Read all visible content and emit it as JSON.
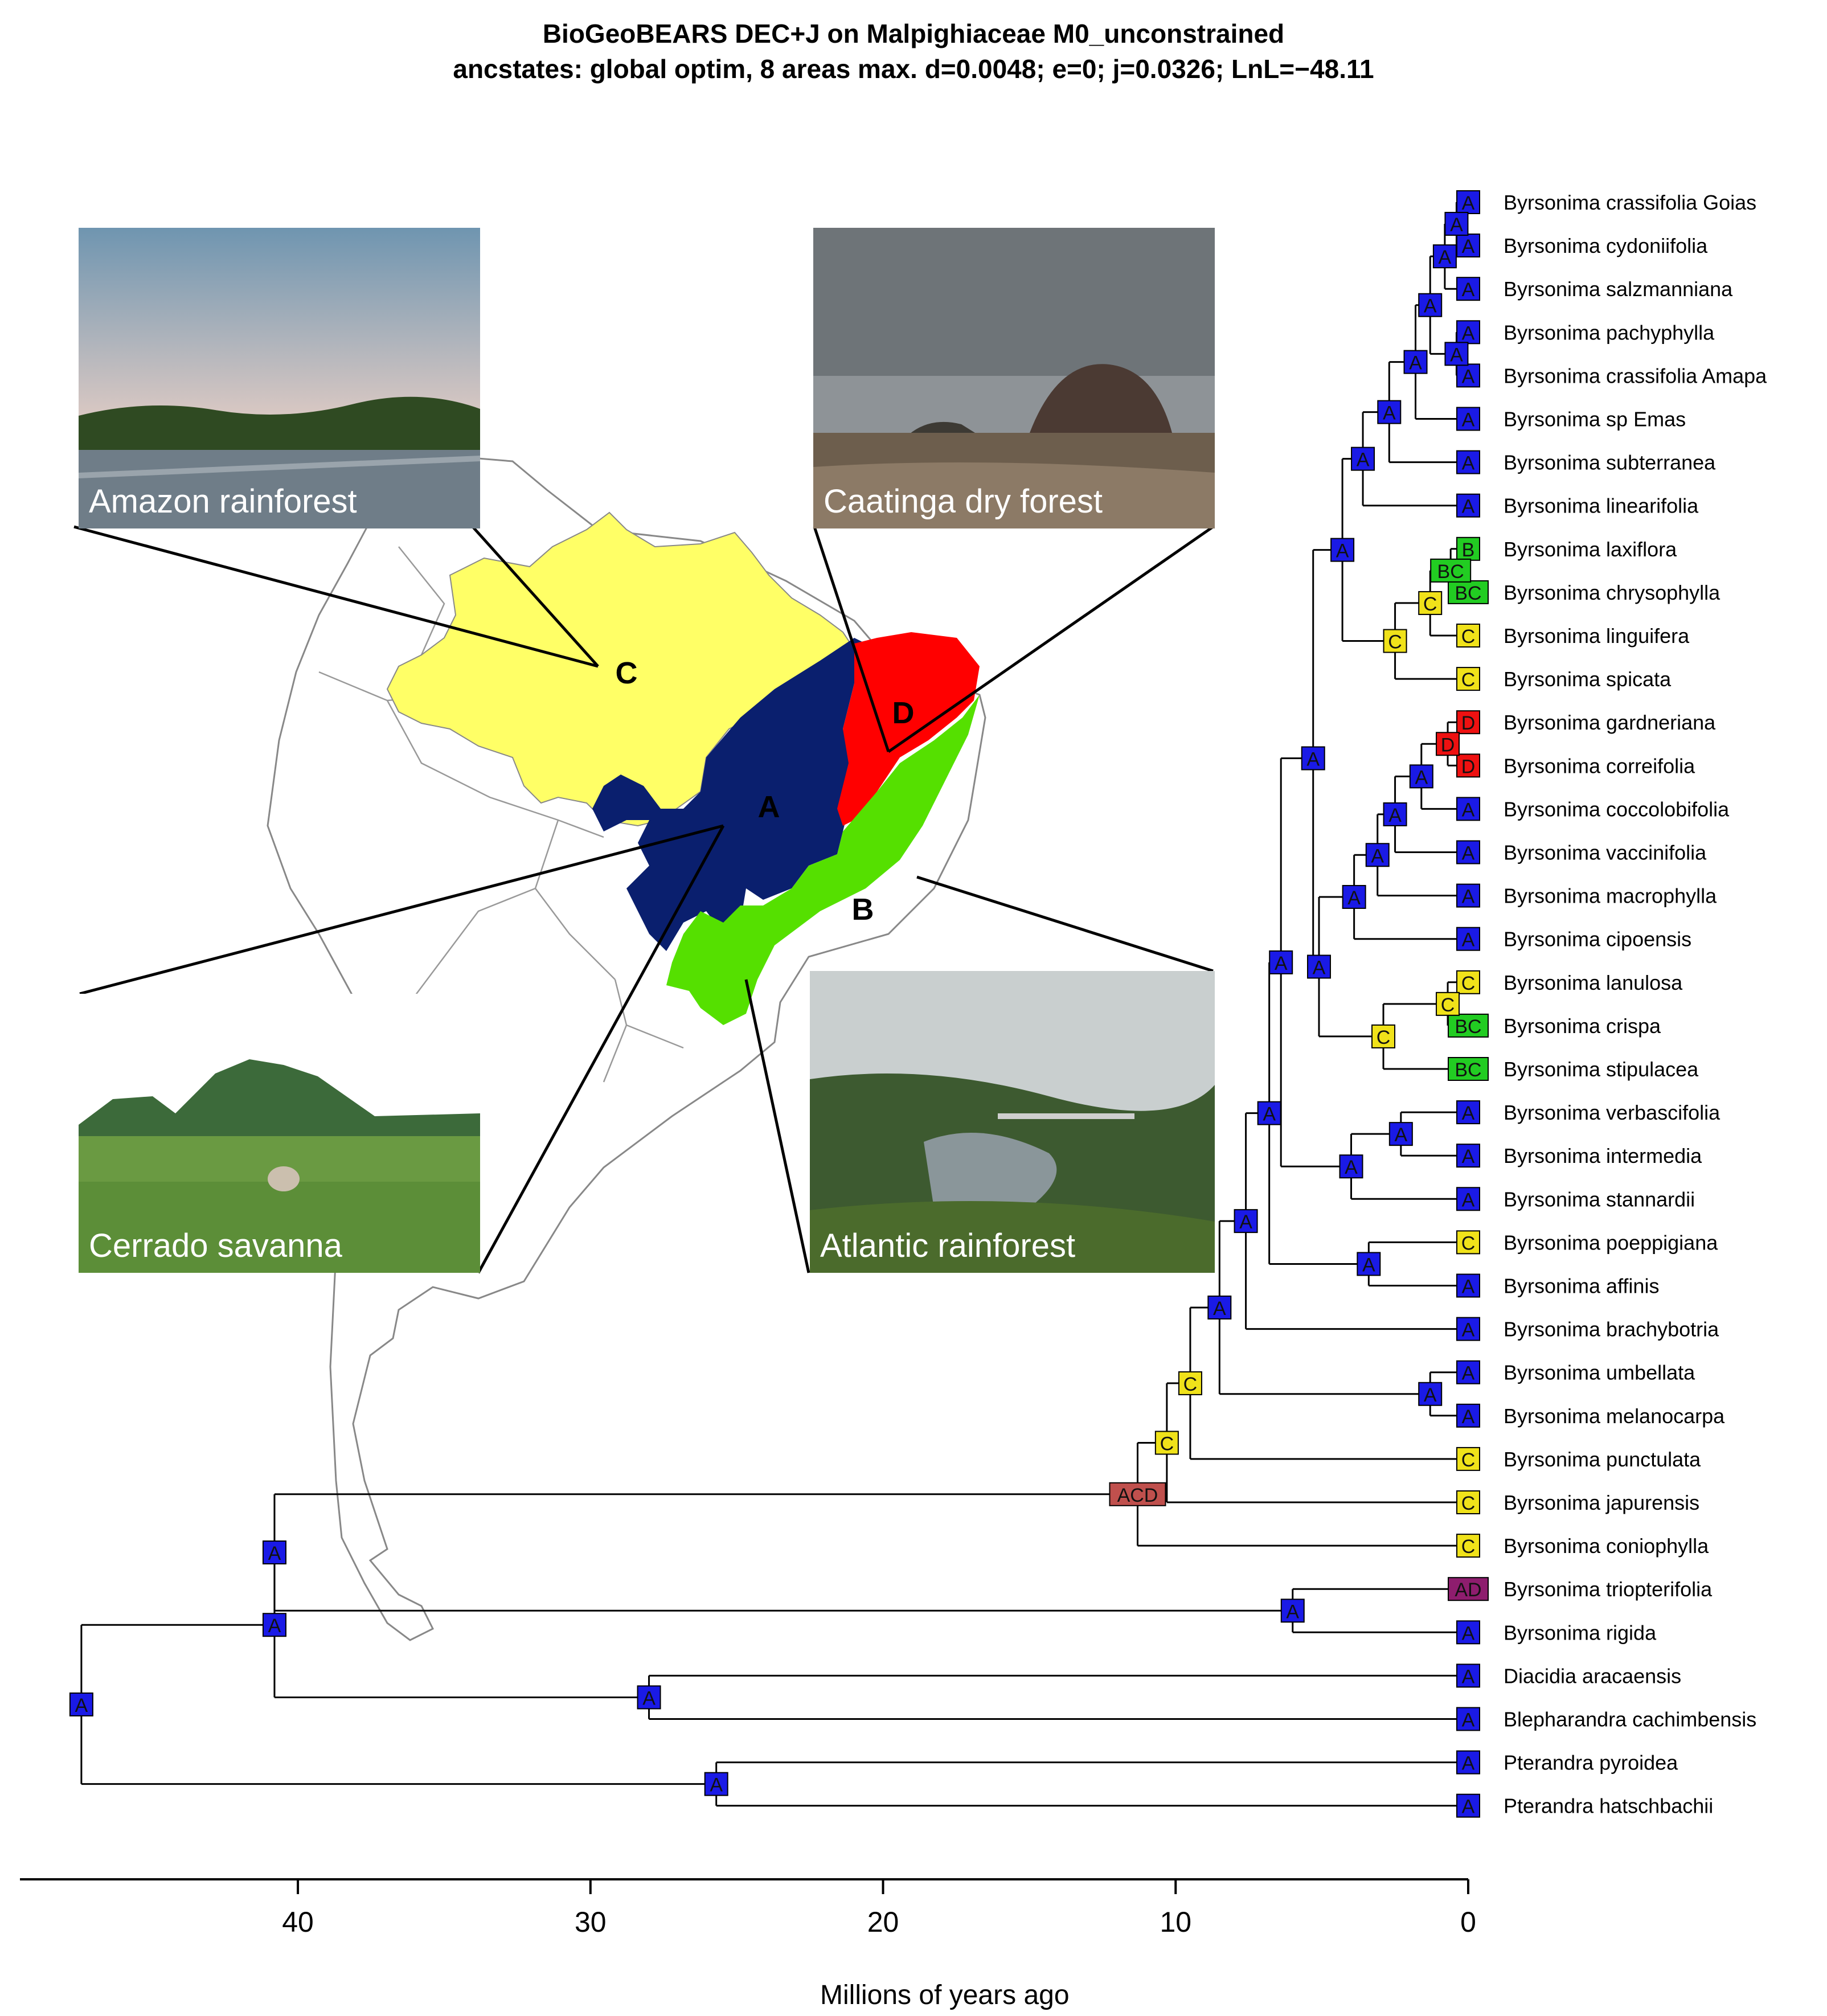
{
  "title": {
    "line1": "BioGeoBEARS DEC+J on Malpighiaceae M0_unconstrained",
    "line2": "ancstates: global optim, 8 areas max. d=0.0048; e=0; j=0.0326; LnL=−48.11"
  },
  "colors": {
    "A": "#1a1ae6",
    "B": "#22cc22",
    "C": "#f0e21a",
    "D": "#ee1111",
    "BC": "#22cc22",
    "AD": "#8e1d6e",
    "ACD": "#c0504d",
    "map_A": "#0a1f6e",
    "map_B": "#55e000",
    "map_C": "#ffff66",
    "map_D": "#ff0000"
  },
  "map": {
    "regions": [
      {
        "code": "A",
        "name": "Cerrado savanna"
      },
      {
        "code": "B",
        "name": "Atlantic rainforest"
      },
      {
        "code": "C",
        "name": "Amazon rainforest"
      },
      {
        "code": "D",
        "name": "Caatinga dry forest"
      }
    ]
  },
  "photos": {
    "amazon": "Amazon rainforest",
    "caatinga": "Caatinga dry forest",
    "cerrado": "Cerrado savanna",
    "atlantic": "Atlantic rainforest"
  },
  "taxa": [
    {
      "genus": "Byrsonima",
      "epithet": "crassifolia  Goias",
      "state": "A"
    },
    {
      "genus": "Byrsonima",
      "epithet": "cydoniifolia",
      "state": "A"
    },
    {
      "genus": "Byrsonima",
      "epithet": "salzmanniana",
      "state": "A"
    },
    {
      "genus": "Byrsonima",
      "epithet": "pachyphylla",
      "state": "A"
    },
    {
      "genus": "Byrsonima",
      "epithet": "crassifolia  Amapa",
      "state": "A"
    },
    {
      "genus": "Byrsonima",
      "epithet": "sp  Emas",
      "state": "A"
    },
    {
      "genus": "Byrsonima",
      "epithet": "subterranea",
      "state": "A"
    },
    {
      "genus": "Byrsonima",
      "epithet": "linearifolia",
      "state": "A"
    },
    {
      "genus": "Byrsonima",
      "epithet": "laxiflora",
      "state": "B"
    },
    {
      "genus": "Byrsonima",
      "epithet": "chrysophylla",
      "state": "BC"
    },
    {
      "genus": "Byrsonima",
      "epithet": "linguifera",
      "state": "C"
    },
    {
      "genus": "Byrsonima",
      "epithet": "spicata",
      "state": "C"
    },
    {
      "genus": "Byrsonima",
      "epithet": "gardneriana",
      "state": "D"
    },
    {
      "genus": "Byrsonima",
      "epithet": "correifolia",
      "state": "D"
    },
    {
      "genus": "Byrsonima",
      "epithet": "coccolobifolia",
      "state": "A"
    },
    {
      "genus": "Byrsonima",
      "epithet": "vaccinifolia",
      "state": "A"
    },
    {
      "genus": "Byrsonima",
      "epithet": "macrophylla",
      "state": "A"
    },
    {
      "genus": "Byrsonima",
      "epithet": "cipoensis",
      "state": "A"
    },
    {
      "genus": "Byrsonima",
      "epithet": "lanulosa",
      "state": "C"
    },
    {
      "genus": "Byrsonima",
      "epithet": "crispa",
      "state": "BC"
    },
    {
      "genus": "Byrsonima",
      "epithet": "stipulacea",
      "state": "BC"
    },
    {
      "genus": "Byrsonima",
      "epithet": "verbascifolia",
      "state": "A"
    },
    {
      "genus": "Byrsonima",
      "epithet": "intermedia",
      "state": "A"
    },
    {
      "genus": "Byrsonima",
      "epithet": "stannardii",
      "state": "A"
    },
    {
      "genus": "Byrsonima",
      "epithet": "poeppigiana",
      "state": "C"
    },
    {
      "genus": "Byrsonima",
      "epithet": "affinis",
      "state": "A"
    },
    {
      "genus": "Byrsonima",
      "epithet": "brachybotria",
      "state": "A"
    },
    {
      "genus": "Byrsonima",
      "epithet": "umbellata",
      "state": "A"
    },
    {
      "genus": "Byrsonima",
      "epithet": "melanocarpa",
      "state": "A"
    },
    {
      "genus": "Byrsonima",
      "epithet": "punctulata",
      "state": "C"
    },
    {
      "genus": "Byrsonima",
      "epithet": "japurensis",
      "state": "C"
    },
    {
      "genus": "Byrsonima",
      "epithet": "coniophylla",
      "state": "C"
    },
    {
      "genus": "Byrsonima",
      "epithet": "triopterifolia",
      "state": "AD"
    },
    {
      "genus": "Byrsonima",
      "epithet": "rigida",
      "state": "A"
    },
    {
      "genus": "Diacidia",
      "epithet": "aracaensis",
      "state": "A"
    },
    {
      "genus": "Blepharandra",
      "epithet": "cachimbensis",
      "state": "A"
    },
    {
      "genus": "Pterandra",
      "epithet": "pyroidea",
      "state": "A"
    },
    {
      "genus": "Pterandra",
      "epithet": "hatschbachii",
      "state": "A"
    }
  ],
  "nodes": [
    {
      "id": "n1",
      "age": 0.4,
      "children": [
        0,
        1
      ],
      "state": "A"
    },
    {
      "id": "n2",
      "age": 0.8,
      "children": [
        "n1",
        2
      ],
      "state": "A"
    },
    {
      "id": "n3",
      "age": 0.4,
      "children": [
        3,
        4
      ],
      "state": "A"
    },
    {
      "id": "n4",
      "age": 1.3,
      "children": [
        "n2",
        "n3"
      ],
      "state": "A"
    },
    {
      "id": "n5",
      "age": 1.8,
      "children": [
        "n4",
        5
      ],
      "state": "A"
    },
    {
      "id": "n6",
      "age": 2.7,
      "children": [
        "n5",
        6
      ],
      "state": "A"
    },
    {
      "id": "n7",
      "age": 3.6,
      "children": [
        "n6",
        7
      ],
      "state": "A"
    },
    {
      "id": "n8",
      "age": 0.6,
      "children": [
        8,
        9
      ],
      "state": "BC"
    },
    {
      "id": "n9",
      "age": 1.3,
      "children": [
        "n8",
        10
      ],
      "state": "C"
    },
    {
      "id": "n10",
      "age": 2.5,
      "children": [
        "n9",
        11
      ],
      "state": "C"
    },
    {
      "id": "n11",
      "age": 4.3,
      "children": [
        "n7",
        "n10"
      ],
      "state": "A"
    },
    {
      "id": "n12",
      "age": 0.7,
      "children": [
        12,
        13
      ],
      "state": "D"
    },
    {
      "id": "n13",
      "age": 1.6,
      "children": [
        "n12",
        14
      ],
      "state": "A"
    },
    {
      "id": "n14",
      "age": 2.5,
      "children": [
        "n13",
        15
      ],
      "state": "A"
    },
    {
      "id": "n15",
      "age": 3.1,
      "children": [
        "n14",
        16
      ],
      "state": "A"
    },
    {
      "id": "n16",
      "age": 3.9,
      "children": [
        "n15",
        17
      ],
      "state": "A"
    },
    {
      "id": "n17",
      "age": 0.7,
      "children": [
        18,
        19
      ],
      "state": "C"
    },
    {
      "id": "n18",
      "age": 2.9,
      "children": [
        "n17",
        20
      ],
      "state": "C"
    },
    {
      "id": "n19",
      "age": 5.1,
      "children": [
        "n16",
        "n18"
      ],
      "state": "A"
    },
    {
      "id": "n20",
      "age": 5.3,
      "children": [
        "n11",
        "n19"
      ],
      "state": "A"
    },
    {
      "id": "n21",
      "age": 2.3,
      "children": [
        21,
        22
      ],
      "state": "A"
    },
    {
      "id": "n22",
      "age": 4.0,
      "children": [
        "n21",
        23
      ],
      "state": "A"
    },
    {
      "id": "n23",
      "age": 6.4,
      "children": [
        "n20",
        "n22"
      ],
      "state": "A"
    },
    {
      "id": "n24",
      "age": 3.4,
      "children": [
        24,
        25
      ],
      "state": "A"
    },
    {
      "id": "n25",
      "age": 6.8,
      "children": [
        "n23",
        "n24"
      ],
      "state": "A"
    },
    {
      "id": "n26",
      "age": 7.6,
      "children": [
        "n25",
        26
      ],
      "state": "A"
    },
    {
      "id": "n27",
      "age": 1.3,
      "children": [
        27,
        28
      ],
      "state": "A"
    },
    {
      "id": "n28",
      "age": 8.5,
      "children": [
        "n26",
        "n27"
      ],
      "state": "A"
    },
    {
      "id": "n29",
      "age": 9.5,
      "children": [
        "n28",
        29
      ],
      "state": "C"
    },
    {
      "id": "n30",
      "age": 10.3,
      "children": [
        "n29",
        30
      ],
      "state": "C"
    },
    {
      "id": "n31",
      "age": 11.3,
      "children": [
        "n30",
        31
      ],
      "state": "ACD"
    },
    {
      "id": "n32",
      "age": 6.0,
      "children": [
        32,
        33
      ],
      "state": "A"
    },
    {
      "id": "n33",
      "age": 40.8,
      "children": [
        "n31",
        "n32"
      ],
      "state": "A"
    },
    {
      "id": "n34",
      "age": 28.0,
      "children": [
        34,
        35
      ],
      "state": "A"
    },
    {
      "id": "n35",
      "age": 40.8,
      "children": [
        "n33",
        "n34"
      ],
      "state": "A"
    },
    {
      "id": "n36",
      "age": 25.7,
      "children": [
        36,
        37
      ],
      "state": "A"
    },
    {
      "id": "n37",
      "age": 47.4,
      "children": [
        "n35",
        "n36"
      ],
      "state": "A"
    }
  ],
  "axis": {
    "label": "Millions of years ago",
    "ticks": [
      40,
      30,
      20,
      10,
      0
    ],
    "range_max": 49.5
  }
}
